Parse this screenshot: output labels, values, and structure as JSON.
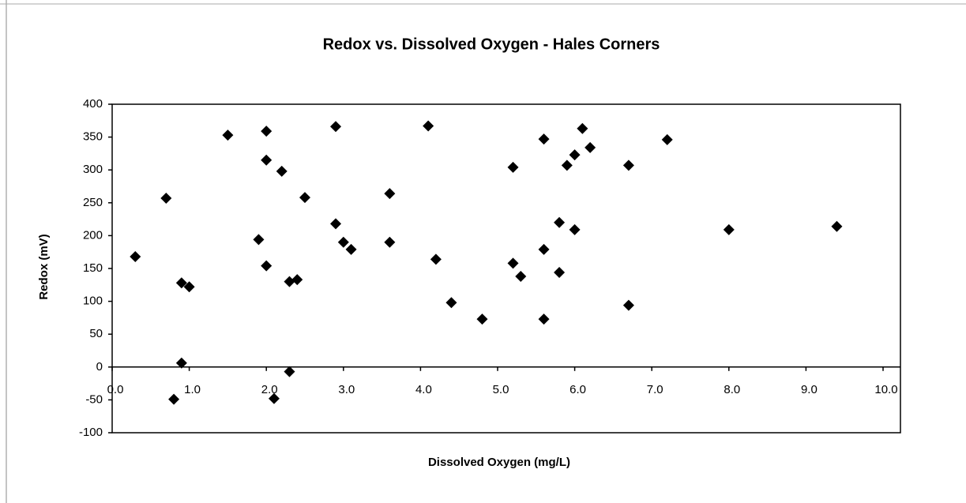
{
  "chart_data": {
    "type": "scatter",
    "title": "Redox vs. Dissolved Oxygen - Hales Corners",
    "x_label": "Dissolved Oxygen (mg/L)",
    "y_label": "Redox (mV)",
    "color": "#000000",
    "x": [
      0.3,
      0.7,
      0.9,
      1.0,
      0.9,
      0.8,
      1.5,
      2.0,
      2.0,
      2.2,
      1.9,
      2.0,
      2.5,
      2.3,
      2.4,
      2.3,
      2.1,
      2.9,
      2.9,
      3.0,
      3.1,
      3.6,
      3.6,
      4.1,
      4.2,
      4.4,
      4.8,
      5.2,
      5.2,
      5.3,
      5.6,
      5.6,
      5.6,
      5.8,
      5.8,
      5.9,
      6.0,
      6.1,
      6.2,
      6.0,
      6.7,
      6.7,
      7.2,
      8.0,
      9.4
    ],
    "values": [
      168,
      257,
      128,
      122,
      6,
      -49,
      353,
      359,
      315,
      298,
      194,
      154,
      258,
      130,
      133,
      -7,
      -48,
      366,
      218,
      190,
      179,
      264,
      190,
      367,
      164,
      98,
      73,
      304,
      158,
      138,
      347,
      179,
      73,
      220,
      144,
      307,
      323,
      363,
      334,
      209,
      307,
      94,
      346,
      209,
      214
    ],
    "xlim": [
      0,
      10
    ],
    "xticks": [
      {
        "value": 0,
        "label": "0.0"
      },
      {
        "value": 1,
        "label": "1.0"
      },
      {
        "value": 2,
        "label": "2.0"
      },
      {
        "value": 3,
        "label": "3.0"
      },
      {
        "value": 4,
        "label": "4.0"
      },
      {
        "value": 5,
        "label": "5.0"
      },
      {
        "value": 6,
        "label": "6.0"
      },
      {
        "value": 7,
        "label": "7.0"
      },
      {
        "value": 8,
        "label": "8.0"
      },
      {
        "value": 9,
        "label": "9.0"
      },
      {
        "value": 10,
        "label": "10.0"
      }
    ],
    "ylim": [
      -100,
      400
    ],
    "yticks": [
      -100,
      -50,
      0,
      50,
      100,
      150,
      200,
      250,
      300,
      350,
      400
    ]
  }
}
